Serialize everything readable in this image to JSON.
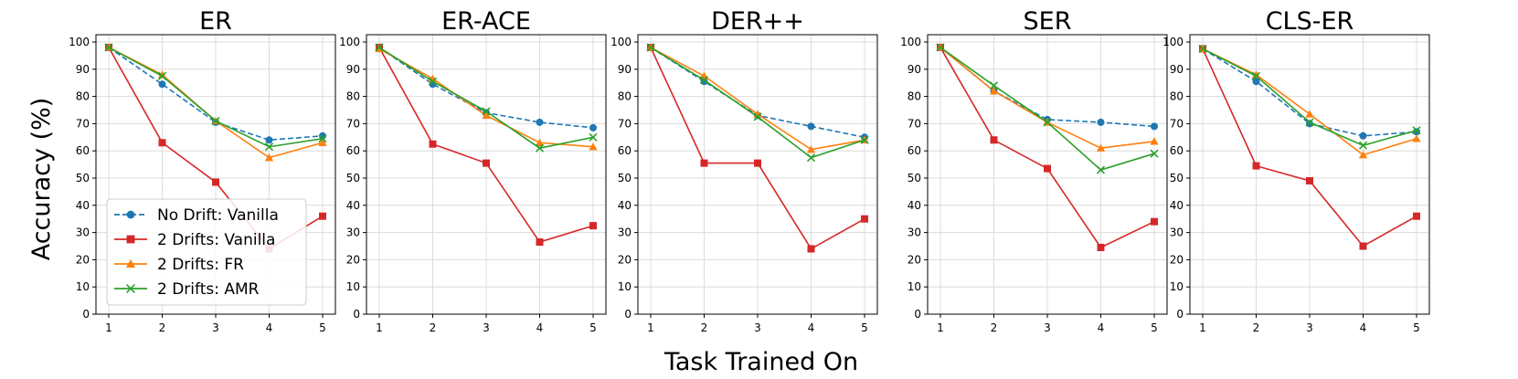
{
  "chart_data": {
    "type": "line",
    "ylabel": "Accuracy (%)",
    "xlabel": "Task Trained On",
    "x": [
      1,
      2,
      3,
      4,
      5
    ],
    "ylim": [
      0,
      100
    ],
    "yticks": [
      0,
      10,
      20,
      30,
      40,
      50,
      60,
      70,
      80,
      90,
      100
    ],
    "grid": true,
    "legend": {
      "placement": "lower-left of first panel",
      "entries": [
        {
          "name": "No Drift: Vanilla",
          "color": "#1f77b4",
          "marker": "circle",
          "dashed": true
        },
        {
          "name": "2 Drifts: Vanilla",
          "color": "#d62728",
          "marker": "square",
          "dashed": false
        },
        {
          "name": "2 Drifts: FR",
          "color": "#ff7f0e",
          "marker": "triangle",
          "dashed": false
        },
        {
          "name": "2 Drifts: AMR",
          "color": "#2ca02c",
          "marker": "x",
          "dashed": false
        }
      ]
    },
    "panels": [
      {
        "title": "ER",
        "series": [
          {
            "name": "No Drift: Vanilla",
            "values": [
              98,
              84.5,
              70.5,
              64,
              65.5
            ]
          },
          {
            "name": "2 Drifts: Vanilla",
            "values": [
              98,
              63,
              48.5,
              24,
              36
            ]
          },
          {
            "name": "2 Drifts: FR",
            "values": [
              98,
              88,
              71,
              57.5,
              63
            ]
          },
          {
            "name": "2 Drifts: AMR",
            "values": [
              98,
              87.5,
              71,
              61.5,
              64.5
            ]
          }
        ]
      },
      {
        "title": "ER-ACE",
        "series": [
          {
            "name": "No Drift: Vanilla",
            "values": [
              98,
              84.5,
              74,
              70.5,
              68.5
            ]
          },
          {
            "name": "2 Drifts: Vanilla",
            "values": [
              98,
              62.5,
              55.5,
              26.5,
              32.5
            ]
          },
          {
            "name": "2 Drifts: FR",
            "values": [
              97.5,
              86.5,
              73,
              63,
              61.5
            ]
          },
          {
            "name": "2 Drifts: AMR",
            "values": [
              98,
              85.5,
              74.5,
              61,
              65
            ]
          }
        ]
      },
      {
        "title": "DER++",
        "series": [
          {
            "name": "No Drift: Vanilla",
            "values": [
              98,
              85.5,
              73,
              69,
              65
            ]
          },
          {
            "name": "2 Drifts: Vanilla",
            "values": [
              98,
              55.5,
              55.5,
              24,
              35
            ]
          },
          {
            "name": "2 Drifts: FR",
            "values": [
              98,
              87.5,
              73.5,
              60.5,
              64
            ]
          },
          {
            "name": "2 Drifts: AMR",
            "values": [
              98,
              86,
              72.5,
              57.5,
              64
            ]
          }
        ]
      },
      {
        "title": "SER",
        "series": [
          {
            "name": "No Drift: Vanilla",
            "values": [
              98,
              82,
              71.5,
              70.5,
              69
            ]
          },
          {
            "name": "2 Drifts: Vanilla",
            "values": [
              98,
              64,
              53.5,
              24.5,
              34
            ]
          },
          {
            "name": "2 Drifts: FR",
            "values": [
              98,
              82,
              70.5,
              61,
              63.5
            ]
          },
          {
            "name": "2 Drifts: AMR",
            "values": [
              98,
              84,
              70.5,
              53,
              59
            ]
          }
        ]
      },
      {
        "title": "CLS-ER",
        "series": [
          {
            "name": "No Drift: Vanilla",
            "values": [
              97.5,
              85.5,
              70,
              65.5,
              67
            ]
          },
          {
            "name": "2 Drifts: Vanilla",
            "values": [
              97.5,
              54.5,
              49,
              25,
              36
            ]
          },
          {
            "name": "2 Drifts: FR",
            "values": [
              97.5,
              88,
              73.5,
              58.5,
              64.5
            ]
          },
          {
            "name": "2 Drifts: AMR",
            "values": [
              97.5,
              87.5,
              70.5,
              62,
              67.5
            ]
          }
        ]
      }
    ]
  }
}
